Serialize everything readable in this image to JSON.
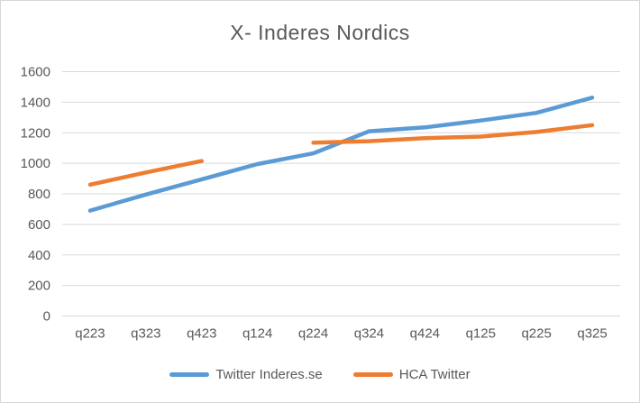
{
  "chart_data": {
    "type": "line",
    "title": "X- Inderes Nordics",
    "xlabel": "",
    "ylabel": "",
    "categories": [
      "q223",
      "q323",
      "q423",
      "q124",
      "q224",
      "q324",
      "q424",
      "q125",
      "q225",
      "q325"
    ],
    "series": [
      {
        "name": "Twitter Inderes.se",
        "color": "#5B9BD5",
        "values": [
          690,
          795,
          895,
          995,
          1065,
          1210,
          1235,
          1280,
          1330,
          1430
        ]
      },
      {
        "name": "HCA Twitter",
        "color": "#ED7D31",
        "values": [
          860,
          940,
          1015,
          null,
          1135,
          1145,
          1165,
          1175,
          1205,
          1250
        ]
      }
    ],
    "ylim": [
      0,
      1600
    ],
    "yticks": [
      0,
      200,
      400,
      600,
      800,
      1000,
      1200,
      1400,
      1600
    ],
    "grid": true,
    "legend_position": "bottom"
  },
  "styles": {
    "axis_text_color": "#595959",
    "title_color": "#595959",
    "gridline_color": "#d9d9d9",
    "border_color": "#d7d7d7",
    "background": "#ffffff"
  }
}
